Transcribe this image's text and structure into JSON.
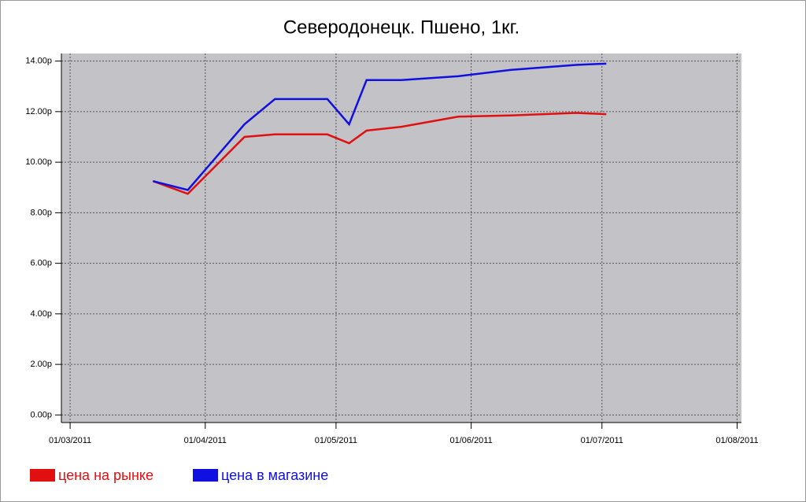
{
  "chart_data": {
    "type": "line",
    "title": "Северодонецк. Пшено, 1кг.",
    "x": [
      "2011-03-20",
      "2011-03-28",
      "2011-04-10",
      "2011-04-17",
      "2011-04-23",
      "2011-04-29",
      "2011-05-04",
      "2011-05-08",
      "2011-05-16",
      "2011-05-29",
      "2011-06-10",
      "2011-06-25",
      "2011-07-02"
    ],
    "series": [
      {
        "name": "цена на рынке",
        "color": "#e01010",
        "values": [
          9.25,
          8.75,
          11.0,
          11.1,
          11.1,
          11.1,
          10.75,
          11.25,
          11.4,
          11.8,
          11.85,
          11.95,
          11.9
        ]
      },
      {
        "name": "цена в магазине",
        "color": "#1010e0",
        "values": [
          9.25,
          8.9,
          11.5,
          12.5,
          12.5,
          12.5,
          11.5,
          13.25,
          13.25,
          13.4,
          13.65,
          13.85,
          13.9
        ]
      }
    ],
    "xlim": [
      "2011-02-27",
      "2011-08-02"
    ],
    "xticks": [
      {
        "value": "2011-03-01",
        "label": "01/03/2011"
      },
      {
        "value": "2011-04-01",
        "label": "01/04/2011"
      },
      {
        "value": "2011-05-01",
        "label": "01/05/2011"
      },
      {
        "value": "2011-06-01",
        "label": "01/06/2011"
      },
      {
        "value": "2011-07-01",
        "label": "01/07/2011"
      },
      {
        "value": "2011-08-01",
        "label": "01/08/2011"
      }
    ],
    "ylim": [
      -0.3,
      14.3
    ],
    "yticks": [
      {
        "value": 0,
        "label": "0.00р"
      },
      {
        "value": 2,
        "label": "2.00р"
      },
      {
        "value": 4,
        "label": "4.00р"
      },
      {
        "value": 6,
        "label": "6.00р"
      },
      {
        "value": 8,
        "label": "8.00р"
      },
      {
        "value": 10,
        "label": "10.00р"
      },
      {
        "value": 12,
        "label": "12.00р"
      },
      {
        "value": 14,
        "label": "14.00р"
      }
    ],
    "grid": true
  }
}
